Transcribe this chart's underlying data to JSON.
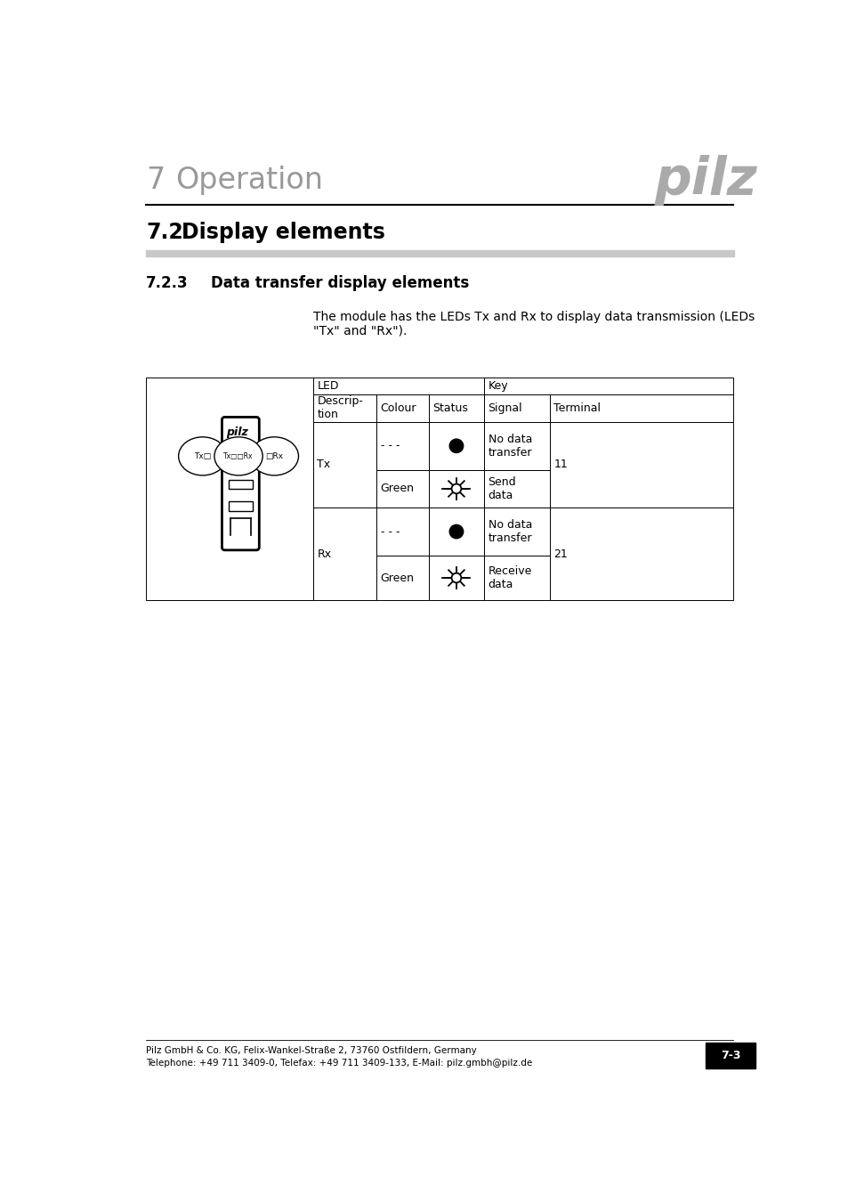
{
  "page_bg": "#ffffff",
  "header_num": "7",
  "header_title": "Operation",
  "section_num": "7.2",
  "section_title": "Display elements",
  "subsection_num": "7.2.3",
  "subsection_title": "Data transfer display elements",
  "body_text_line1": "The module has the LEDs Tx and Rx to display data transmission (LEDs",
  "body_text_line2": "\"Tx\" and \"Rx\").",
  "pilz_logo_color": "#aaaaaa",
  "footer_text1": "Pilz GmbH & Co. KG, Felix-Wankel-Straße 2, 73760 Ostfildern, Germany",
  "footer_text2": "Telephone: +49 711 3409-0, Telefax: +49 711 3409-133, E-Mail: pilz.gmbh@pilz.de",
  "footer_page": "7-3"
}
